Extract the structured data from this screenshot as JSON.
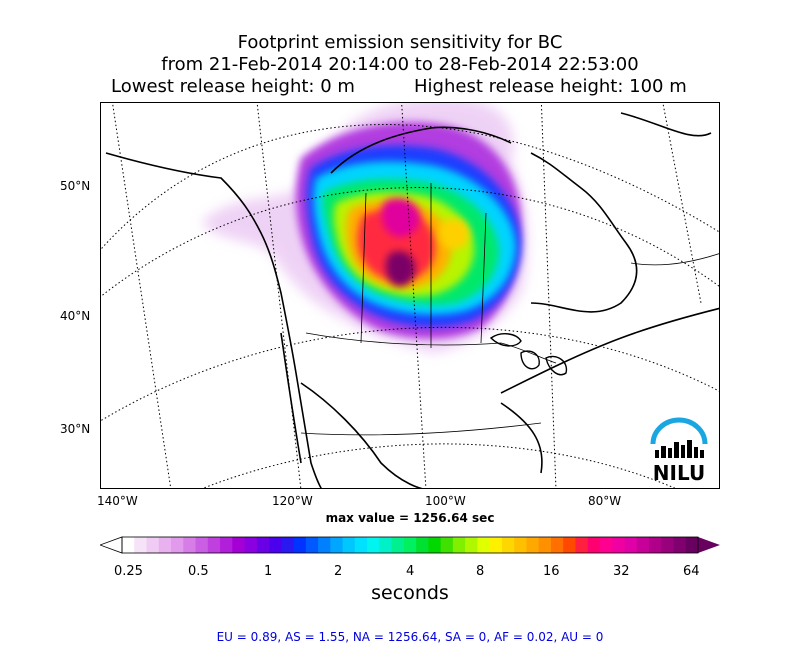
{
  "title": {
    "line1": "Footprint emission sensitivity for BC",
    "line2": "from 21-Feb-2014 20:14:00 to 28-Feb-2014 22:53:00",
    "lowest": "Lowest release height: 0 m",
    "highest": "Highest release height: 100 m"
  },
  "map": {
    "lat_labels": [
      "50°N",
      "40°N",
      "30°N"
    ],
    "lon_labels": [
      "140°W",
      "120°W",
      "100°W",
      "80°W"
    ],
    "max_value": "max value = 1256.64 sec",
    "logo_text": "NILU",
    "logo_color": "#1aa6e0"
  },
  "colorbar": {
    "ticks": [
      "0.25",
      "0.5",
      "1",
      "2",
      "4",
      "8",
      "16",
      "32",
      "64"
    ],
    "label": "seconds",
    "colors": [
      "#ffffff",
      "#f6e3f8",
      "#f0ccf4",
      "#e9b1ef",
      "#e19aec",
      "#d77de8",
      "#cb5fe3",
      "#bf3fdf",
      "#b21fdb",
      "#a400d6",
      "#8a00e0",
      "#6a00e6",
      "#4b00ee",
      "#2a18f0",
      "#0033ff",
      "#0059ff",
      "#0080ff",
      "#00a6ff",
      "#00c8ff",
      "#00e0ff",
      "#00f5f0",
      "#00f0c8",
      "#00f090",
      "#00f060",
      "#00e030",
      "#00d800",
      "#40e000",
      "#80f000",
      "#b0f800",
      "#e0ff00",
      "#fff000",
      "#ffd700",
      "#ffc000",
      "#ffa800",
      "#ff9000",
      "#ff7000",
      "#ff4800",
      "#ff2040",
      "#ff0070",
      "#ff0090",
      "#f000a0",
      "#e000a8",
      "#c8009a",
      "#b0008a",
      "#98007c",
      "#800070",
      "#680060"
    ]
  },
  "footer": "EU = 0.89,  AS = 1.55,  NA = 1256.64,  SA = 0,  AF = 0.02,  AU = 0"
}
